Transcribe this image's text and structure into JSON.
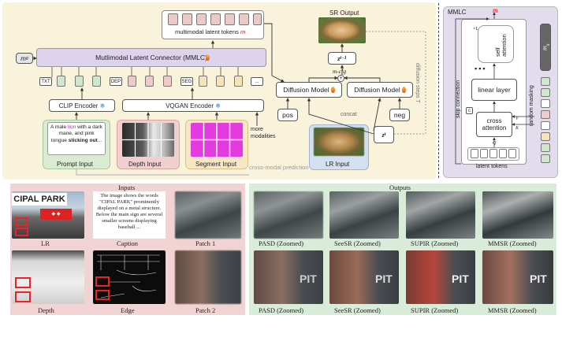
{
  "diagram": {
    "latent_tokens_label": "multimodal latent tokens",
    "m_symbol": "m",
    "mg_label": "m",
    "mg_sub": "g",
    "mmlc_main": "Mutlimodal Latent Connector (MMLC)",
    "token_tags": [
      "TXT",
      "DEP",
      "SEG",
      "..."
    ],
    "clip_encoder": "CLIP Encoder",
    "vqgan_encoder": "VQGAN Encoder",
    "prompt_text_a": "A male ",
    "prompt_text_lion": "lion",
    "prompt_text_b": " with a dark mane, and pink tongue ",
    "prompt_text_c": "sticking out",
    "prompt_text_d": "...",
    "prompt_input": "Prompt Input",
    "depth_input": "Depth Input",
    "segment_input": "Segment Input",
    "more_modalities": "more modalities",
    "cross_modal": "cross-modal prediction",
    "sr_output": "SR Output",
    "z_prev": "z",
    "z_prev_sub": "t−1",
    "m_cfg": "m-cfg",
    "diffusion_model": "Diffusion Model",
    "diffusion_steps": "diffusion steps T",
    "pos": "pos",
    "neg": "neg",
    "concat": "concat",
    "zt": "z",
    "zt_sub": "t",
    "lr_input": "LR Input"
  },
  "mmlc_panel": {
    "title": "MMLC",
    "m_symbol": "m",
    "self_attention": "self attention",
    "linear_layer": "linear layer",
    "cross_attention": "cross attention",
    "latent_tokens": "latent tokens",
    "skip_connection": "skip connection",
    "random_masking": "random masking",
    "mg_label": "m",
    "mg_sub": "g",
    "q": "Q",
    "k": "K",
    "v": "V",
    "times": "×L",
    "c": "c"
  },
  "inputs": {
    "title": "Inputs",
    "lr": "LR",
    "caption": "Caption",
    "caption_text": "The image shows the words \"CIPAL PARK\" prominently displayed on a metal structure. Below the main sign are several smaller screens displaying baseball ...",
    "depth": "Depth",
    "edge": "Edge",
    "patch1": "Patch 1",
    "patch2": "Patch 2",
    "sign_text": "CIPAL PARK"
  },
  "outputs": {
    "title": "Outputs",
    "row1": [
      "PASD (Zoomed)",
      "SeeSR (Zoomed)",
      "SUPIR (Zoomed)",
      "MMSR (Zoomed)"
    ],
    "row2": [
      "PASD (Zoomed)",
      "SeeSR (Zoomed)",
      "SUPIR (Zoomed)",
      "MMSR (Zoomed)"
    ],
    "pit_text": "PIT"
  },
  "colors": {
    "top_bg": "#faf3dc",
    "mmlc_bar": "#ddd3ec",
    "txt_token": "#cfe7cf",
    "dep_token": "#eecaca",
    "seg_token": "#f8e2b8",
    "latent_token": "#eac9c9",
    "inputs_bg": "#f2d3d3",
    "outputs_bg": "#d9ecd9",
    "prompt_bg": "#d9ecd2",
    "depth_bg": "#f2cfcf",
    "segment_bg": "#f8e6c4",
    "lr_bg": "#d4dff0",
    "magenta": "#e33be0",
    "red_accent": "#d11"
  }
}
